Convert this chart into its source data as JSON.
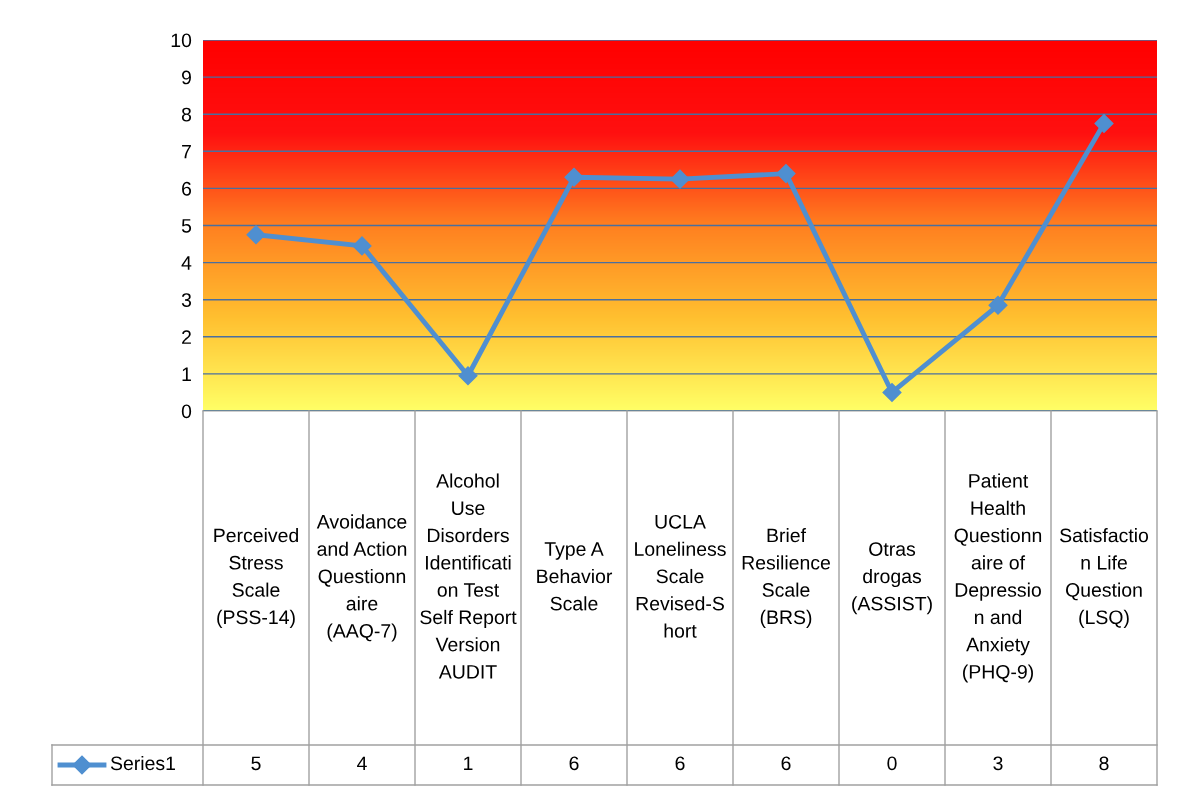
{
  "chart_data": {
    "type": "line",
    "categories": [
      "Perceived Stress Scale (PSS-14)",
      "Avoidance and Action Questionnaire (AAQ-7)",
      "Alcohol Use Disorders Identification Test Self Report Version AUDIT",
      "Type A Behavior Scale",
      "UCLA Loneliness Scale Revised-Short",
      "Brief Resilience Scale (BRS)",
      "Otras drogas (ASSIST)",
      "Patient Health Questionnaire of Depression and Anxiety (PHQ-9)",
      "Satisfaction Life Question (LSQ)"
    ],
    "series": [
      {
        "name": "Series1",
        "color": "#4f8fd0",
        "values": [
          4.75,
          4.45,
          0.95,
          6.3,
          6.25,
          6.4,
          0.5,
          2.85,
          7.75
        ],
        "value_labels": [
          "5",
          "4",
          "1",
          "6",
          "6",
          "6",
          "0",
          "3",
          "8"
        ]
      }
    ],
    "ylim": [
      0,
      10
    ],
    "yticks": [
      0,
      1,
      2,
      3,
      4,
      5,
      6,
      7,
      8,
      9,
      10
    ],
    "grid": "y",
    "marker": "diamond",
    "line_style": "solid"
  }
}
